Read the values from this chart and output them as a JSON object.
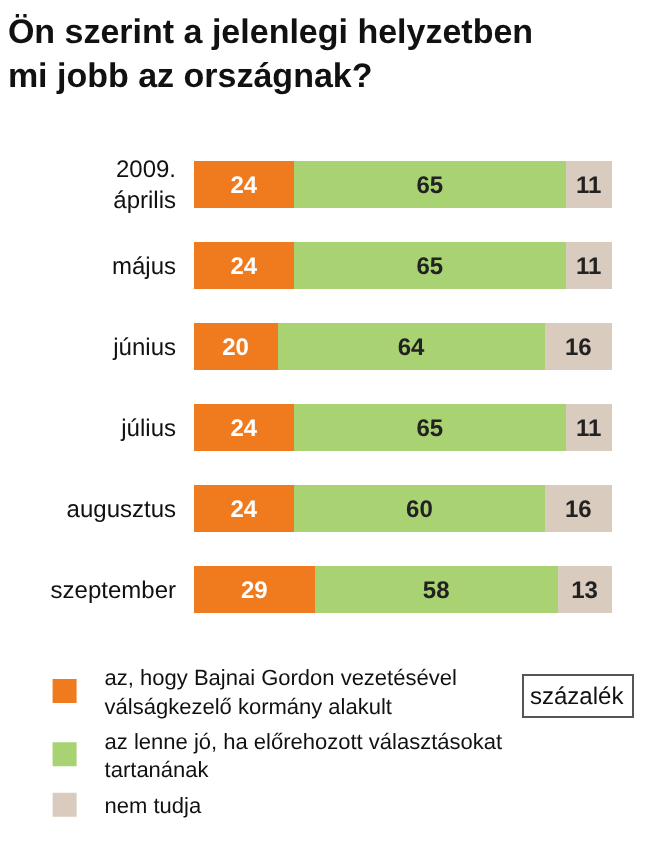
{
  "chart_data": {
    "type": "bar",
    "orientation": "horizontal",
    "stacked": true,
    "data_labels": true,
    "legend": "bottom left",
    "tick_labels": "y",
    "title": "Ön szerint a jelenlegi helyzetben mi jobb az országnak?",
    "categories": [
      "2009. április",
      "május",
      "június",
      "július",
      "augusztus",
      "szeptember"
    ],
    "series": [
      {
        "name": "az, hogy Bajnai Gordon vezetésével válságkezelő kormány alakult",
        "color": "#f07a1e",
        "values": [
          24,
          24,
          20,
          24,
          24,
          29
        ]
      },
      {
        "name": "az lenne jó, ha előrehozott választásokat tartanának",
        "color": "#a9d273",
        "values": [
          65,
          65,
          64,
          65,
          60,
          58
        ]
      },
      {
        "name": "nem tudja",
        "color": "#d9cbbd",
        "values": [
          11,
          11,
          16,
          11,
          16,
          13
        ]
      }
    ],
    "annotations": [
      "százalék"
    ]
  }
}
